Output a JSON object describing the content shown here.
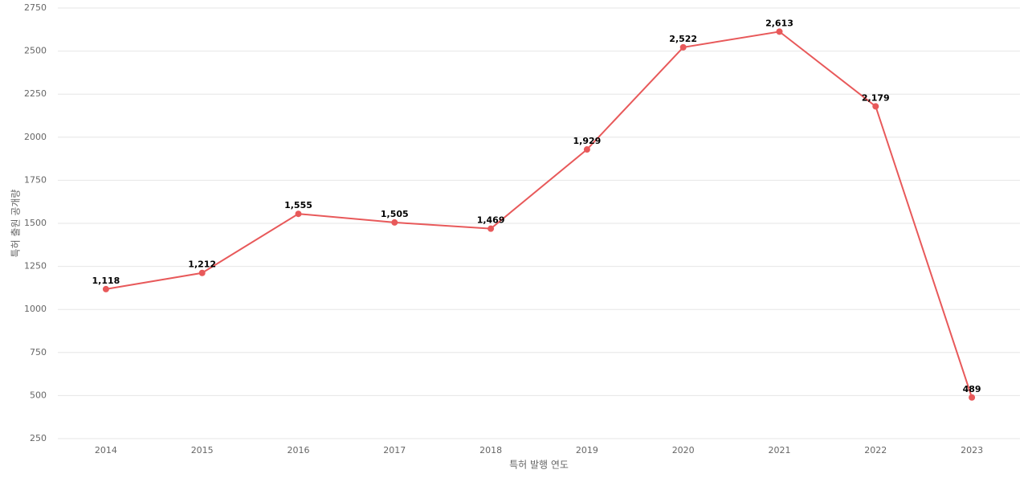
{
  "chart_data": {
    "type": "line",
    "x_label": "특허 발행 연도",
    "y_label": "특허 출원 공개량",
    "categories": [
      "2014",
      "2015",
      "2016",
      "2017",
      "2018",
      "2019",
      "2020",
      "2021",
      "2022",
      "2023"
    ],
    "values": [
      1118,
      1212,
      1555,
      1505,
      1469,
      1929,
      2522,
      2613,
      2179,
      489
    ],
    "value_labels": [
      "1,118",
      "1,212",
      "1,555",
      "1,505",
      "1,469",
      "1,929",
      "2,522",
      "2,613",
      "2,179",
      "489"
    ],
    "color": "#e8595a",
    "ylim": [
      250,
      2750
    ],
    "yticks": [
      250,
      500,
      750,
      1000,
      1250,
      1500,
      1750,
      2000,
      2250,
      2500,
      2750
    ],
    "grid": true
  }
}
